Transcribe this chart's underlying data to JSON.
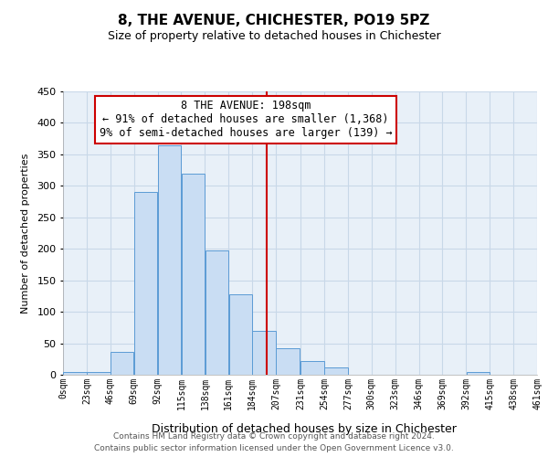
{
  "title": "8, THE AVENUE, CHICHESTER, PO19 5PZ",
  "subtitle": "Size of property relative to detached houses in Chichester",
  "xlabel": "Distribution of detached houses by size in Chichester",
  "ylabel": "Number of detached properties",
  "bar_left_edges": [
    0,
    23,
    46,
    69,
    92,
    115,
    138,
    161,
    184,
    207,
    231,
    254,
    277,
    300,
    323,
    346,
    369,
    392,
    415,
    438
  ],
  "bar_heights": [
    5,
    5,
    36,
    290,
    365,
    320,
    197,
    128,
    70,
    42,
    22,
    12,
    0,
    0,
    0,
    0,
    0,
    5,
    0,
    0
  ],
  "bin_width": 23,
  "bar_color": "#c9ddf3",
  "bar_edge_color": "#5b9bd5",
  "vline_x": 198,
  "vline_color": "#cc0000",
  "annotation_title": "8 THE AVENUE: 198sqm",
  "annotation_line1": "← 91% of detached houses are smaller (1,368)",
  "annotation_line2": "9% of semi-detached houses are larger (139) →",
  "annotation_box_color": "#cc0000",
  "ylim": [
    0,
    450
  ],
  "xtick_labels": [
    "0sqm",
    "23sqm",
    "46sqm",
    "69sqm",
    "92sqm",
    "115sqm",
    "138sqm",
    "161sqm",
    "184sqm",
    "207sqm",
    "231sqm",
    "254sqm",
    "277sqm",
    "300sqm",
    "323sqm",
    "346sqm",
    "369sqm",
    "392sqm",
    "415sqm",
    "438sqm",
    "461sqm"
  ],
  "xtick_positions": [
    0,
    23,
    46,
    69,
    92,
    115,
    138,
    161,
    184,
    207,
    231,
    254,
    277,
    300,
    323,
    346,
    369,
    392,
    415,
    438,
    461
  ],
  "grid_color": "#c8d8e8",
  "bg_color": "#e8f0f8",
  "footer_line1": "Contains HM Land Registry data © Crown copyright and database right 2024.",
  "footer_line2": "Contains public sector information licensed under the Open Government Licence v3.0."
}
